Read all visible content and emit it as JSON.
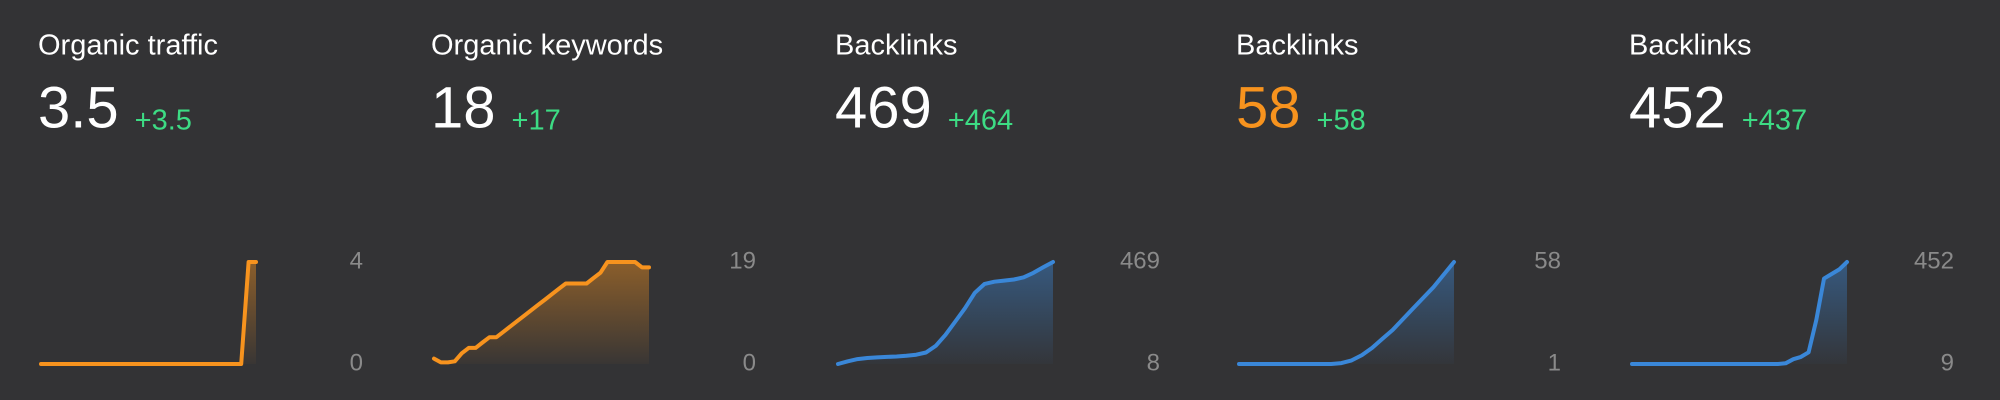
{
  "chart_data": [
    {
      "type": "line",
      "title": "Organic traffic",
      "metric": "3.5",
      "change": "+3.5",
      "metric_color": "#ffffff",
      "color": "#f7931e",
      "values": [
        0,
        0,
        0,
        0,
        0,
        0,
        0,
        0,
        0,
        0,
        0,
        0,
        0,
        0,
        0,
        0,
        0,
        0,
        0,
        0,
        0,
        0,
        0,
        0,
        0,
        0,
        0,
        0,
        4,
        4
      ],
      "ylim": [
        0,
        4
      ],
      "yticks": [
        0,
        4
      ]
    },
    {
      "type": "line",
      "title": "Organic keywords",
      "metric": "18",
      "change": "+17",
      "metric_color": "#ffffff",
      "color": "#f7931e",
      "values": [
        1,
        0.3,
        0.3,
        0.5,
        2,
        3,
        3,
        4,
        5,
        5,
        6,
        7,
        8,
        9,
        10,
        11,
        12,
        13,
        14,
        15,
        15,
        15,
        15,
        16,
        17,
        19,
        19,
        19,
        19,
        19,
        18,
        18
      ],
      "ylim": [
        0,
        19
      ],
      "yticks": [
        0,
        19
      ]
    },
    {
      "type": "line",
      "title": "Backlinks",
      "metric": "469",
      "change": "+464",
      "metric_color": "#ffffff",
      "color": "#3a87d8",
      "values": [
        8,
        20,
        30,
        35,
        38,
        40,
        42,
        45,
        50,
        60,
        90,
        140,
        200,
        260,
        330,
        370,
        380,
        385,
        390,
        400,
        420,
        445,
        469
      ],
      "ylim": [
        8,
        469
      ],
      "yticks": [
        8,
        469
      ]
    },
    {
      "type": "line",
      "title": "Backlinks",
      "metric": "58",
      "change": "+58",
      "metric_color": "#f7931e",
      "color": "#3a87d8",
      "values": [
        1,
        1,
        1,
        1,
        1,
        1,
        1,
        1,
        1,
        1,
        1.5,
        3,
        6,
        10,
        15,
        20,
        26,
        32,
        38,
        44,
        51,
        58
      ],
      "ylim": [
        1,
        58
      ],
      "yticks": [
        1,
        58
      ]
    },
    {
      "type": "line",
      "title": "Backlinks",
      "metric": "452",
      "change": "+437",
      "metric_color": "#ffffff",
      "color": "#3a87d8",
      "values": [
        9,
        9,
        9,
        9,
        9,
        9,
        9,
        9,
        9,
        9,
        9,
        9,
        9,
        9,
        9,
        9,
        9,
        9,
        9,
        9,
        12,
        30,
        40,
        60,
        200,
        380,
        400,
        420,
        452
      ],
      "ylim": [
        9,
        452
      ],
      "yticks": [
        9,
        452
      ]
    }
  ]
}
